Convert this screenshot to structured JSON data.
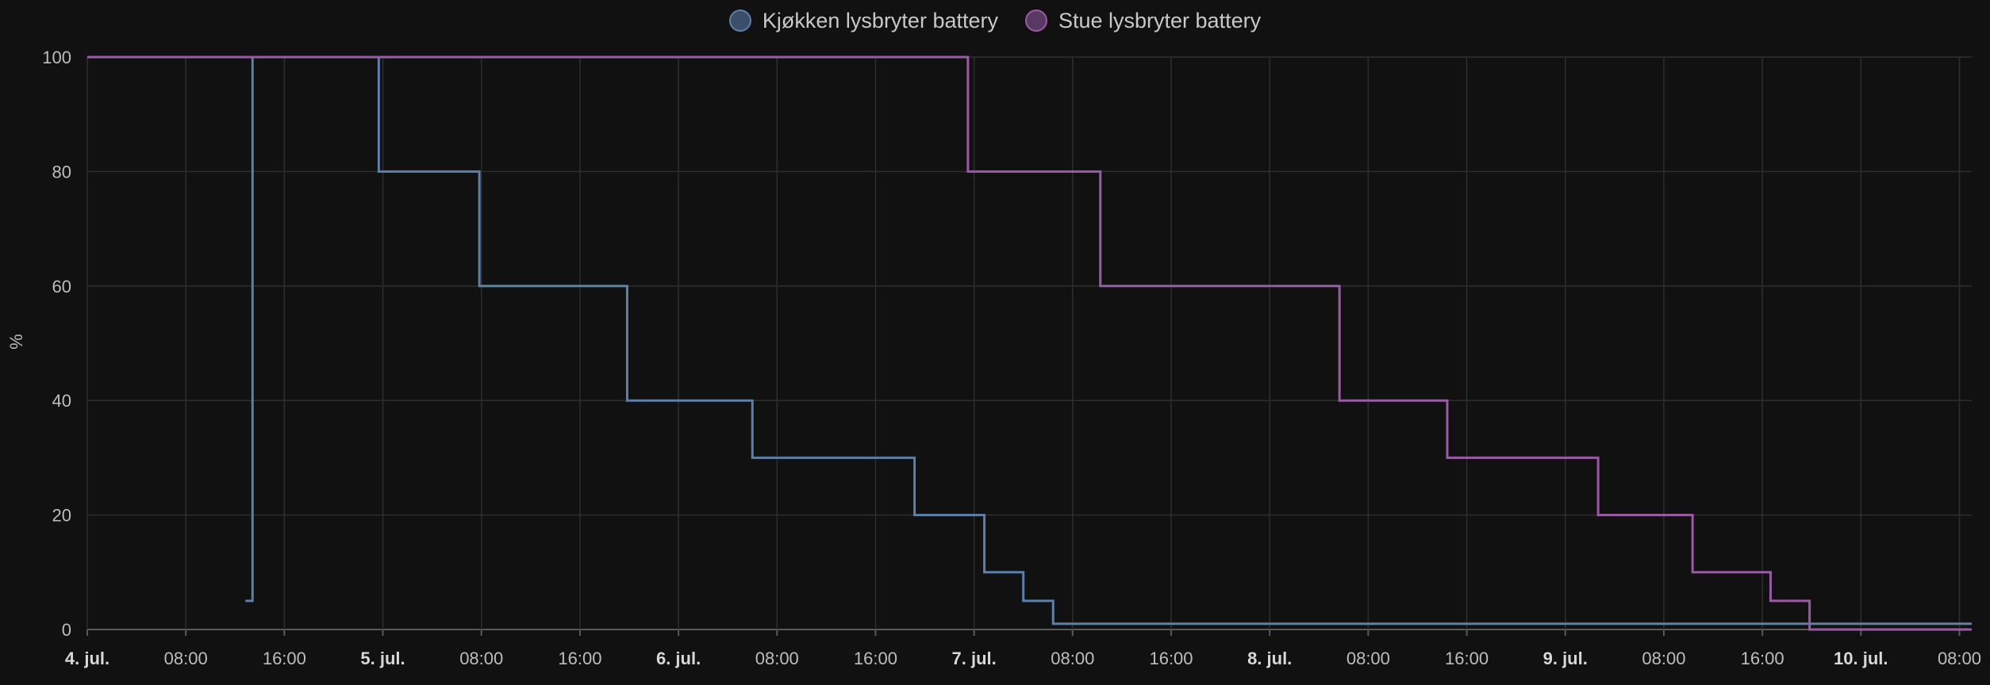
{
  "chart_data": {
    "type": "line",
    "step": true,
    "ylabel": "%",
    "ylim": [
      0,
      100
    ],
    "yticks": [
      0,
      20,
      40,
      60,
      80,
      100
    ],
    "xlim": [
      "2024-07-04T00:00",
      "2024-07-10T09:00"
    ],
    "xticks": [
      {
        "t": "2024-07-04T00:00",
        "label": "4. jul.",
        "major": true
      },
      {
        "t": "2024-07-04T08:00",
        "label": "08:00",
        "major": false
      },
      {
        "t": "2024-07-04T16:00",
        "label": "16:00",
        "major": false
      },
      {
        "t": "2024-07-05T00:00",
        "label": "5. jul.",
        "major": true
      },
      {
        "t": "2024-07-05T08:00",
        "label": "08:00",
        "major": false
      },
      {
        "t": "2024-07-05T16:00",
        "label": "16:00",
        "major": false
      },
      {
        "t": "2024-07-06T00:00",
        "label": "6. jul.",
        "major": true
      },
      {
        "t": "2024-07-06T08:00",
        "label": "08:00",
        "major": false
      },
      {
        "t": "2024-07-06T16:00",
        "label": "16:00",
        "major": false
      },
      {
        "t": "2024-07-07T00:00",
        "label": "7. jul.",
        "major": true
      },
      {
        "t": "2024-07-07T08:00",
        "label": "08:00",
        "major": false
      },
      {
        "t": "2024-07-07T16:00",
        "label": "16:00",
        "major": false
      },
      {
        "t": "2024-07-08T00:00",
        "label": "8. jul.",
        "major": true
      },
      {
        "t": "2024-07-08T08:00",
        "label": "08:00",
        "major": false
      },
      {
        "t": "2024-07-08T16:00",
        "label": "16:00",
        "major": false
      },
      {
        "t": "2024-07-09T00:00",
        "label": "9. jul.",
        "major": true
      },
      {
        "t": "2024-07-09T08:00",
        "label": "08:00",
        "major": false
      },
      {
        "t": "2024-07-09T16:00",
        "label": "16:00",
        "major": false
      },
      {
        "t": "2024-07-10T00:00",
        "label": "10. jul.",
        "major": true
      },
      {
        "t": "2024-07-10T08:00",
        "label": "08:00",
        "major": false
      }
    ],
    "grid": true,
    "legend_position": "top-center",
    "series": [
      {
        "name": "Kjøkken lysbryter battery",
        "color": "#5d7fa8",
        "points": [
          {
            "t": "2024-07-04T12:50",
            "v": 5
          },
          {
            "t": "2024-07-04T13:25",
            "v": 100
          },
          {
            "t": "2024-07-04T23:40",
            "v": 80
          },
          {
            "t": "2024-07-05T07:50",
            "v": 60
          },
          {
            "t": "2024-07-05T19:50",
            "v": 40
          },
          {
            "t": "2024-07-06T06:00",
            "v": 30
          },
          {
            "t": "2024-07-06T19:10",
            "v": 20
          },
          {
            "t": "2024-07-07T00:50",
            "v": 10
          },
          {
            "t": "2024-07-07T04:00",
            "v": 5
          },
          {
            "t": "2024-07-07T06:25",
            "v": 1
          },
          {
            "t": "2024-07-10T09:00",
            "v": 1
          }
        ]
      },
      {
        "name": "Stue lysbryter battery",
        "color": "#9a5ba6",
        "points": [
          {
            "t": "2024-07-04T00:00",
            "v": 100
          },
          {
            "t": "2024-07-06T23:30",
            "v": 80
          },
          {
            "t": "2024-07-07T10:15",
            "v": 60
          },
          {
            "t": "2024-07-08T05:40",
            "v": 40
          },
          {
            "t": "2024-07-08T14:25",
            "v": 30
          },
          {
            "t": "2024-07-09T02:40",
            "v": 20
          },
          {
            "t": "2024-07-09T10:20",
            "v": 10
          },
          {
            "t": "2024-07-09T16:40",
            "v": 5
          },
          {
            "t": "2024-07-09T19:50",
            "v": 0
          },
          {
            "t": "2024-07-10T09:00",
            "v": 0
          }
        ]
      }
    ]
  }
}
